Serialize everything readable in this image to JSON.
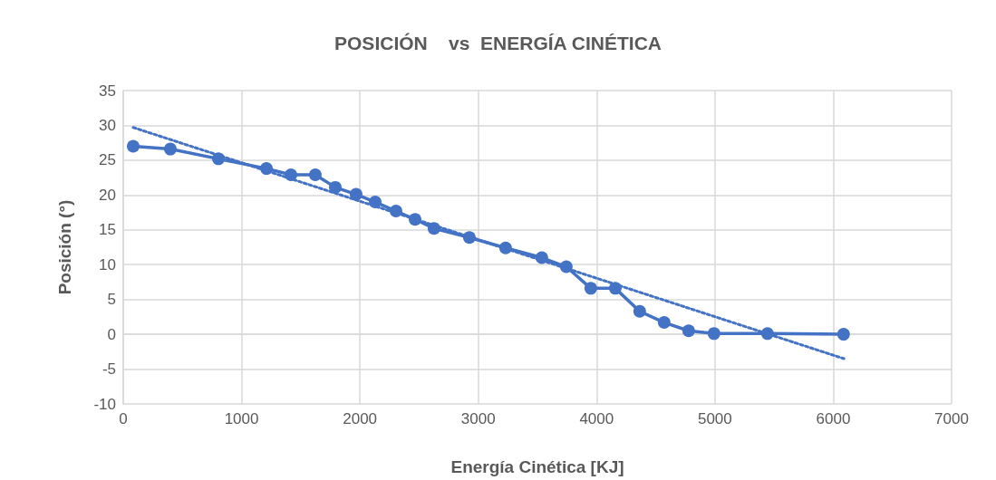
{
  "chart_data": {
    "type": "line",
    "title": "POSICIÓN    vs  ENERGÍA CINÉTICA",
    "xlabel": "Energía Cinética [KJ]",
    "ylabel": "Posición (°)",
    "xlim": [
      0,
      7000
    ],
    "xticks": [
      0,
      1000,
      2000,
      3000,
      4000,
      5000,
      6000,
      7000
    ],
    "ylim": [
      -10,
      35
    ],
    "yticks": [
      -10,
      -5,
      0,
      5,
      10,
      15,
      20,
      25,
      30,
      35
    ],
    "grid": true,
    "series": [
      {
        "color": "#4472c4",
        "marker": "circle",
        "line_style": "solid",
        "x": [
          84,
          398,
          804,
          1210,
          1417,
          1623,
          1792,
          1968,
          2129,
          2305,
          2466,
          2626,
          2925,
          3231,
          3537,
          3744,
          3951,
          4158,
          4364,
          4571,
          4778,
          4992,
          5444,
          6087
        ],
        "values": [
          27.0,
          26.6,
          25.2,
          23.8,
          22.9,
          22.9,
          21.1,
          20.1,
          19.0,
          17.7,
          16.5,
          15.2,
          13.9,
          12.4,
          11.0,
          9.7,
          6.6,
          6.6,
          3.3,
          1.7,
          0.5,
          0.1,
          0.1,
          0
        ]
      },
      {
        "type": "line",
        "color": "#4472c4",
        "marker": "none",
        "line_style": "dotted",
        "x": [
          84,
          6090
        ],
        "values": [
          29.7,
          -3.5
        ]
      }
    ]
  }
}
